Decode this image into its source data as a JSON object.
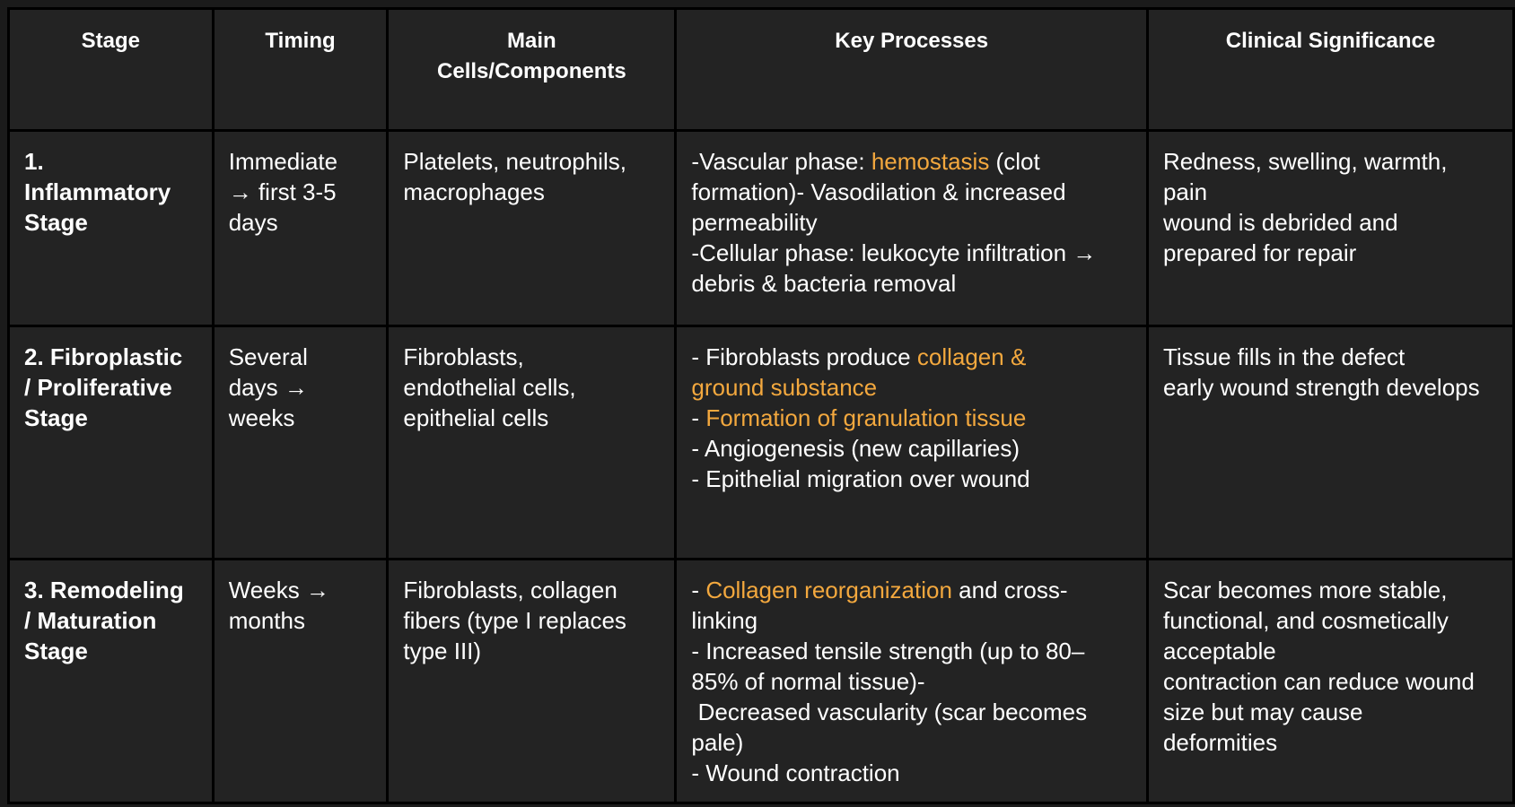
{
  "headers": {
    "stage": "Stage",
    "timing": "Timing",
    "cells_line1": "Main",
    "cells_line2": "Cells/Components",
    "processes": "Key Processes",
    "clinical": "Clinical Significance"
  },
  "rows": [
    {
      "stage": [
        "1.",
        "Inflammatory",
        "Stage"
      ],
      "timing": [
        "Immediate",
        "→ first 3-5",
        "days"
      ],
      "cells": [
        "Platelets, neutrophils,",
        "macrophages"
      ],
      "processes": {
        "l1a": "-Vascular phase: ",
        "l1hl": "hemostasis",
        "l1b": " (clot",
        "l2": "formation)- Vasodilation & increased",
        "l3": "permeability",
        "l4": "-Cellular phase: leukocyte infiltration →",
        "l5": "debris & bacteria removal"
      },
      "clinical": [
        "Redness, swelling, warmth,",
        "pain",
        "wound is debrided and",
        "prepared for repair"
      ]
    },
    {
      "stage": [
        "2. Fibroplastic",
        "/ Proliferative",
        "Stage"
      ],
      "timing": [
        "Several",
        "days →",
        "weeks"
      ],
      "cells": [
        "Fibroblasts,",
        "endothelial cells,",
        "epithelial cells"
      ],
      "processes": {
        "l1a": "- Fibroblasts produce ",
        "l1hl": "collagen &",
        "l2hl": "ground substance",
        "l3a": "- ",
        "l3hl": "Formation of granulation tissue",
        "l4": "- Angiogenesis (new capillaries)",
        "l5": "- Epithelial migration over wound"
      },
      "clinical": [
        "Tissue fills in the defect",
        "early wound strength develops"
      ]
    },
    {
      "stage": [
        "3. Remodeling",
        "/ Maturation",
        "Stage"
      ],
      "timing": [
        "Weeks →",
        "months"
      ],
      "cells": [
        "Fibroblasts, collagen",
        "fibers (type I replaces",
        "type III)"
      ],
      "processes": {
        "l1a": "- ",
        "l1hl": "Collagen reorganization",
        "l1b": " and cross-",
        "l2": "linking",
        "l3": "- Increased tensile strength (up to 80–",
        "l4": "85% of normal tissue)-",
        "l5": " Decreased vascularity (scar becomes",
        "l6": "pale)",
        "l7": "- Wound contraction"
      },
      "clinical": [
        "Scar becomes more stable,",
        "functional, and cosmetically",
        "acceptable",
        "contraction can reduce wound",
        "size but may cause",
        "deformities"
      ]
    }
  ],
  "highlight_color": "#f3a83e",
  "background_color": "#232323"
}
